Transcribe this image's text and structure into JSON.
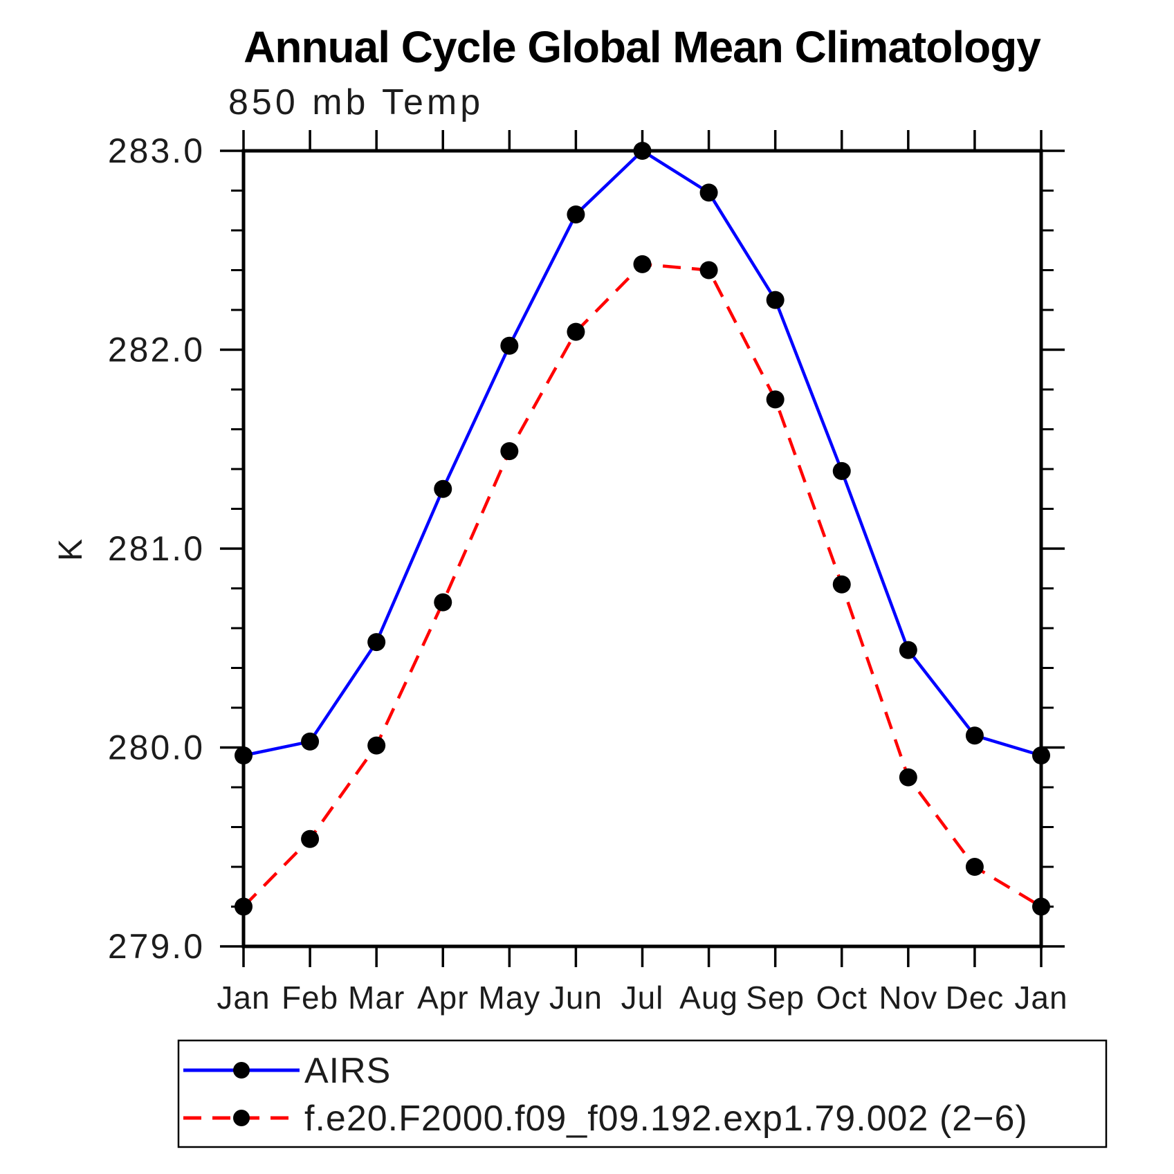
{
  "title": "Annual Cycle Global Mean Climatology",
  "subtitle": "850 mb Temp",
  "ylabel": "K",
  "colors": {
    "airs_line": "#0000ff",
    "model_line": "#ff0000",
    "marker": "#000000",
    "axis": "#000000",
    "background": "#ffffff"
  },
  "legend": {
    "entries": [
      {
        "label": "AIRS",
        "style": "solid",
        "color": "#0000ff"
      },
      {
        "label": "f.e20.F2000.f09_f09.192.exp1.79.002 (2−6)",
        "style": "dashed",
        "color": "#ff0000"
      }
    ]
  },
  "chart_data": {
    "type": "line",
    "categories": [
      "Jan",
      "Feb",
      "Mar",
      "Apr",
      "May",
      "Jun",
      "Jul",
      "Aug",
      "Sep",
      "Oct",
      "Nov",
      "Dec",
      "Jan"
    ],
    "series": [
      {
        "name": "AIRS",
        "color": "#0000ff",
        "dash": "solid",
        "marker": "circle",
        "values": [
          279.96,
          280.03,
          280.53,
          281.3,
          282.02,
          282.68,
          283.0,
          282.79,
          282.25,
          281.39,
          280.49,
          280.06,
          279.96
        ]
      },
      {
        "name": "f.e20.F2000.f09_f09.192.exp1.79.002 (2−6)",
        "color": "#ff0000",
        "dash": "dashed",
        "marker": "circle",
        "values": [
          279.2,
          279.54,
          280.01,
          280.73,
          281.49,
          282.09,
          282.43,
          282.4,
          281.75,
          280.82,
          279.85,
          279.4,
          279.2
        ]
      }
    ],
    "xlabel": "",
    "ylabel": "K",
    "ylim": [
      279.0,
      283.0
    ],
    "yticks": [
      279.0,
      280.0,
      281.0,
      282.0,
      283.0
    ],
    "ytick_labels": [
      "279.0",
      "280.0",
      "281.0",
      "282.0",
      "283.0"
    ],
    "minor_tick_step": 0.2,
    "grid": false,
    "legend_position": "bottom"
  }
}
